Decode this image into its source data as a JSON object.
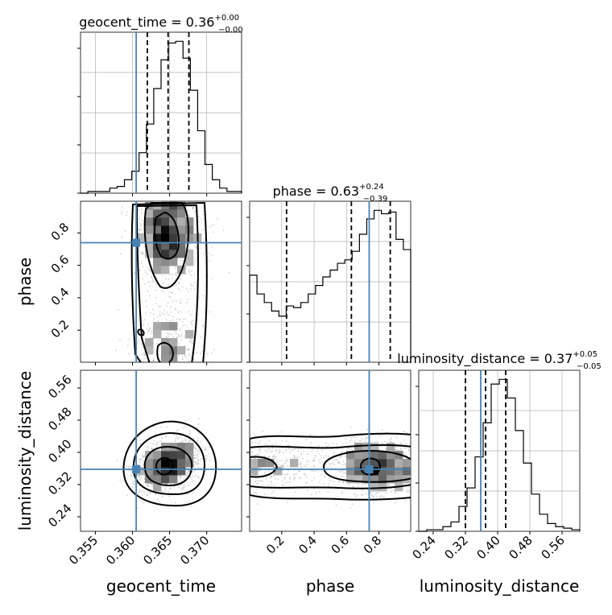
{
  "chart_data": {
    "type": "corner",
    "parameters": [
      "geocent_time",
      "phase",
      "luminosity_distance"
    ],
    "truths": {
      "geocent_time": 0.3605,
      "phase": 0.74,
      "luminosity_distance": 0.358
    },
    "titles": [
      {
        "param": "geocent_time",
        "label": "geocent_time = 0.36",
        "up": "+0.00",
        "down": "−0.00"
      },
      {
        "param": "phase",
        "label": "phase = 0.63",
        "up": "+0.24",
        "down": "−0.39"
      },
      {
        "param": "luminosity_distance",
        "label": "luminosity_distance = 0.37",
        "up": "+0.05",
        "down": "−0.05"
      }
    ],
    "axes": {
      "geocent_time": {
        "range": [
          0.353,
          0.3747
        ],
        "ticks": [
          "0.355",
          "0.360",
          "0.365",
          "0.370"
        ]
      },
      "phase": {
        "range": [
          0.002,
          0.996
        ],
        "ticks": [
          "0.2",
          "0.4",
          "0.6",
          "0.8"
        ]
      },
      "luminosity_distance": {
        "range": [
          0.204,
          0.604
        ],
        "ticks": [
          "0.24",
          "0.32",
          "0.40",
          "0.48",
          "0.56"
        ]
      }
    },
    "quantiles": {
      "geocent_time": [
        0.362,
        0.3648,
        0.3676
      ],
      "phase": [
        0.23,
        0.63,
        0.87
      ],
      "luminosity_distance": [
        0.32,
        0.37,
        0.42
      ]
    },
    "histograms": {
      "geocent_time": [
        0,
        1,
        1,
        1,
        3,
        4,
        8,
        13,
        24,
        41,
        62,
        79,
        89,
        90,
        80,
        61,
        37,
        17,
        8,
        3,
        1,
        1
      ],
      "phase": [
        51,
        40,
        35,
        30,
        27,
        33,
        32,
        35,
        40,
        45,
        50,
        54,
        58,
        60,
        65,
        75,
        84,
        89,
        87,
        88,
        72,
        66
      ],
      "luminosity_distance": [
        0,
        1,
        1,
        3,
        6,
        16,
        28,
        48,
        70,
        95,
        98,
        86,
        65,
        44,
        24,
        11,
        5,
        3,
        2,
        1
      ]
    },
    "xlabels": [
      "geocent_time",
      "phase",
      "luminosity_distance"
    ],
    "ylabels": [
      "phase",
      "luminosity_distance"
    ],
    "colors": {
      "truth": "#4682b4",
      "hist": "#000000",
      "grid": "#b0b0b0"
    }
  }
}
